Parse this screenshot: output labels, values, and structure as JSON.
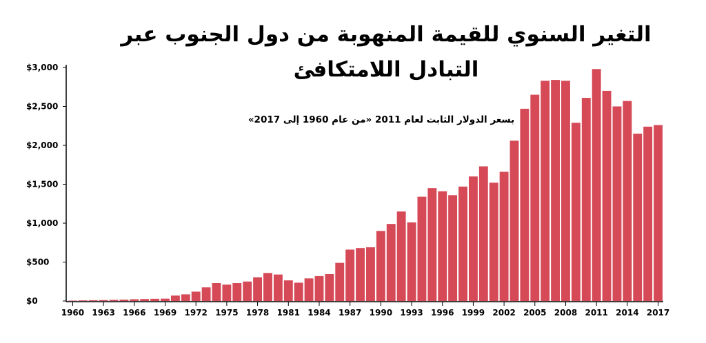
{
  "chart_data": {
    "type": "bar",
    "title_lines": [
      "التغير السنوي للقيمة المنهوبة من دول الجنوب عبر",
      "التبادل اللامتكافئ"
    ],
    "subtitle": "بسعر الدولار الثابت لعام 2011  «من عام 1960 إلى 2017»",
    "xlabel": "",
    "ylabel": "",
    "ylim": [
      0,
      3000
    ],
    "yticks": [
      0,
      500,
      1000,
      1500,
      2000,
      2500,
      3000
    ],
    "ytick_labels": [
      "$0",
      "$500",
      "$1,000",
      "$1,500",
      "$2,000",
      "$2,500",
      "$3,000"
    ],
    "xtick_labels": [
      "1960",
      "1963",
      "1966",
      "1969",
      "1972",
      "1975",
      "1978",
      "1981",
      "1984",
      "1987",
      "1990",
      "1993",
      "1996",
      "1999",
      "2002",
      "2005",
      "2008",
      "2011",
      "2014",
      "2017"
    ],
    "categories": [
      1960,
      1961,
      1962,
      1963,
      1964,
      1965,
      1966,
      1967,
      1968,
      1969,
      1970,
      1971,
      1972,
      1973,
      1974,
      1975,
      1976,
      1977,
      1978,
      1979,
      1980,
      1981,
      1982,
      1983,
      1984,
      1985,
      1986,
      1987,
      1988,
      1989,
      1990,
      1991,
      1992,
      1993,
      1994,
      1995,
      1996,
      1997,
      1998,
      1999,
      2000,
      2001,
      2002,
      2003,
      2004,
      2005,
      2006,
      2007,
      2008,
      2009,
      2010,
      2011,
      2012,
      2013,
      2014,
      2015,
      2016,
      2017
    ],
    "values": [
      5,
      8,
      10,
      12,
      15,
      18,
      22,
      25,
      28,
      30,
      70,
      85,
      120,
      175,
      230,
      210,
      230,
      250,
      305,
      360,
      340,
      265,
      235,
      290,
      320,
      345,
      490,
      660,
      680,
      690,
      900,
      990,
      1150,
      1010,
      1340,
      1450,
      1410,
      1360,
      1470,
      1600,
      1730,
      1520,
      1660,
      2060,
      2470,
      2650,
      2830,
      2840,
      2830,
      2290,
      2610,
      2980,
      2700,
      2500,
      2570,
      2150,
      2240,
      2260
    ],
    "grid": false,
    "legend": "none",
    "bar_color": "#d64a58"
  }
}
